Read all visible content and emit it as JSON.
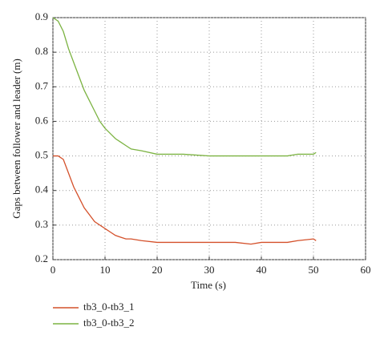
{
  "chart_data": {
    "type": "line",
    "xlabel": "Time (s)",
    "ylabel": "Gaps between follower and leader (m)",
    "x": [
      0,
      1,
      2,
      3,
      4,
      5,
      6,
      7,
      8,
      9,
      10,
      11,
      12,
      13,
      14,
      15,
      17,
      20,
      25,
      30,
      35,
      38,
      40,
      45,
      47,
      50,
      50.5
    ],
    "series": [
      {
        "name": "tb3_0-tb3_1",
        "color": "#d4502a",
        "values": [
          0.5,
          0.5,
          0.49,
          0.45,
          0.41,
          0.38,
          0.35,
          0.33,
          0.31,
          0.3,
          0.29,
          0.28,
          0.27,
          0.265,
          0.26,
          0.26,
          0.255,
          0.25,
          0.25,
          0.25,
          0.25,
          0.245,
          0.25,
          0.25,
          0.255,
          0.26,
          0.255
        ]
      },
      {
        "name": "tb3_0-tb3_2",
        "color": "#7cb342",
        "values": [
          0.9,
          0.89,
          0.86,
          0.81,
          0.77,
          0.73,
          0.69,
          0.66,
          0.63,
          0.6,
          0.58,
          0.565,
          0.55,
          0.54,
          0.53,
          0.52,
          0.515,
          0.505,
          0.505,
          0.5,
          0.5,
          0.5,
          0.5,
          0.5,
          0.505,
          0.505,
          0.51
        ]
      }
    ],
    "xlim": [
      0,
      60
    ],
    "xticks": [
      0,
      10,
      20,
      30,
      40,
      50,
      60
    ],
    "ylim": [
      0.2,
      0.9
    ],
    "yticks": [
      0.2,
      0.3,
      0.4,
      0.5,
      0.6,
      0.7,
      0.8,
      0.9
    ],
    "grid": true,
    "legend": "bottom-left"
  }
}
